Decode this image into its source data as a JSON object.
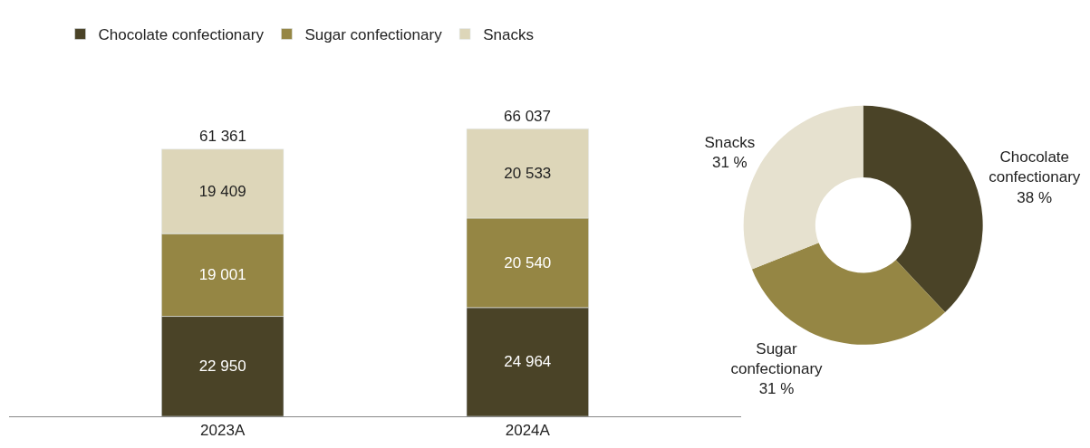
{
  "chart_data": [
    {
      "type": "bar",
      "stacked": true,
      "categories": [
        "2023A",
        "2024A"
      ],
      "legend": "top left",
      "series": [
        {
          "name": "Chocolate confectionary",
          "color": "#4a4327",
          "values": [
            22950,
            24964
          ],
          "value_labels": [
            "22 950",
            "24 964"
          ]
        },
        {
          "name": "Sugar confectionary",
          "color": "#958644",
          "values": [
            19001,
            20540
          ],
          "value_labels": [
            "19 001",
            "20 540"
          ]
        },
        {
          "name": "Snacks",
          "color": "#ddd6b9",
          "values": [
            19409,
            20533
          ],
          "value_labels": [
            "19 409",
            "20 533"
          ]
        }
      ],
      "totals": [
        "61 361",
        "66 037"
      ]
    },
    {
      "type": "donut",
      "categories": [
        "Chocolate confectionary",
        "Sugar confectionary",
        "Snacks"
      ],
      "values": [
        38,
        31,
        31
      ],
      "colors": [
        "#4a4327",
        "#958644",
        "#e6e1cf"
      ],
      "value_labels": [
        "38 %",
        "31 %",
        "31 %"
      ]
    }
  ]
}
